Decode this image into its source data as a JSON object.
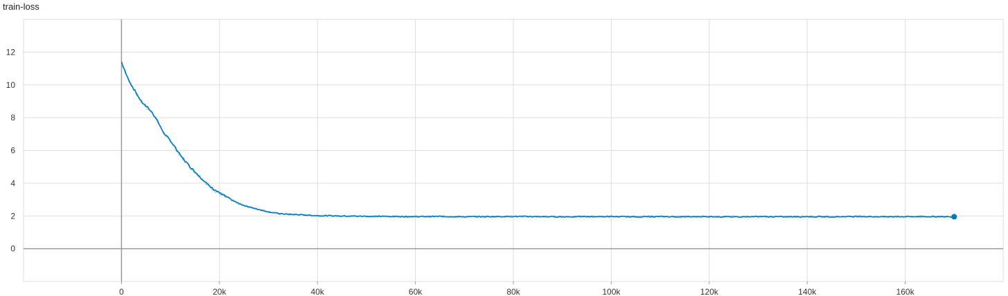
{
  "chart_data": {
    "type": "line",
    "title": "train-loss",
    "xlabel": "",
    "ylabel": "",
    "xlim": [
      -20000,
      180000
    ],
    "ylim": [
      -2,
      14
    ],
    "x_ticks": [
      0,
      20000,
      40000,
      60000,
      80000,
      100000,
      120000,
      140000,
      160000
    ],
    "x_tick_labels": [
      "0",
      "20k",
      "40k",
      "60k",
      "80k",
      "100k",
      "120k",
      "140k",
      "160k"
    ],
    "y_ticks": [
      0,
      2,
      4,
      6,
      8,
      10,
      12
    ],
    "y_tick_labels": [
      "0",
      "2",
      "4",
      "6",
      "8",
      "10",
      "12"
    ],
    "grid": true,
    "legend": "none",
    "series": [
      {
        "color": "#0077bb",
        "smoothed_color": "#9ccbe8",
        "x": [
          0,
          500,
          1000,
          2000,
          3000,
          4000,
          5000,
          6000,
          7000,
          8000,
          9000,
          10000,
          12000,
          14000,
          16000,
          18000,
          20000,
          22000,
          24000,
          26000,
          28000,
          30000,
          32000,
          34000,
          36000,
          38000,
          40000,
          45000,
          50000,
          55000,
          60000,
          65000,
          70000,
          75000,
          80000,
          85000,
          90000,
          95000,
          100000,
          105000,
          110000,
          115000,
          120000,
          125000,
          130000,
          135000,
          140000,
          145000,
          150000,
          155000,
          160000,
          165000,
          170000
        ],
        "y": [
          11.4,
          11.0,
          10.6,
          10.0,
          9.5,
          9.0,
          8.7,
          8.4,
          8.0,
          7.4,
          6.9,
          6.6,
          5.7,
          5.0,
          4.4,
          3.8,
          3.4,
          3.05,
          2.75,
          2.55,
          2.4,
          2.25,
          2.15,
          2.1,
          2.08,
          2.05,
          2.02,
          2.0,
          1.98,
          1.97,
          1.96,
          1.97,
          1.95,
          1.96,
          1.97,
          1.96,
          1.95,
          1.96,
          1.96,
          1.95,
          1.96,
          1.95,
          1.96,
          1.95,
          1.96,
          1.95,
          1.96,
          1.95,
          1.97,
          1.95,
          1.96,
          1.96,
          1.95
        ]
      }
    ]
  }
}
